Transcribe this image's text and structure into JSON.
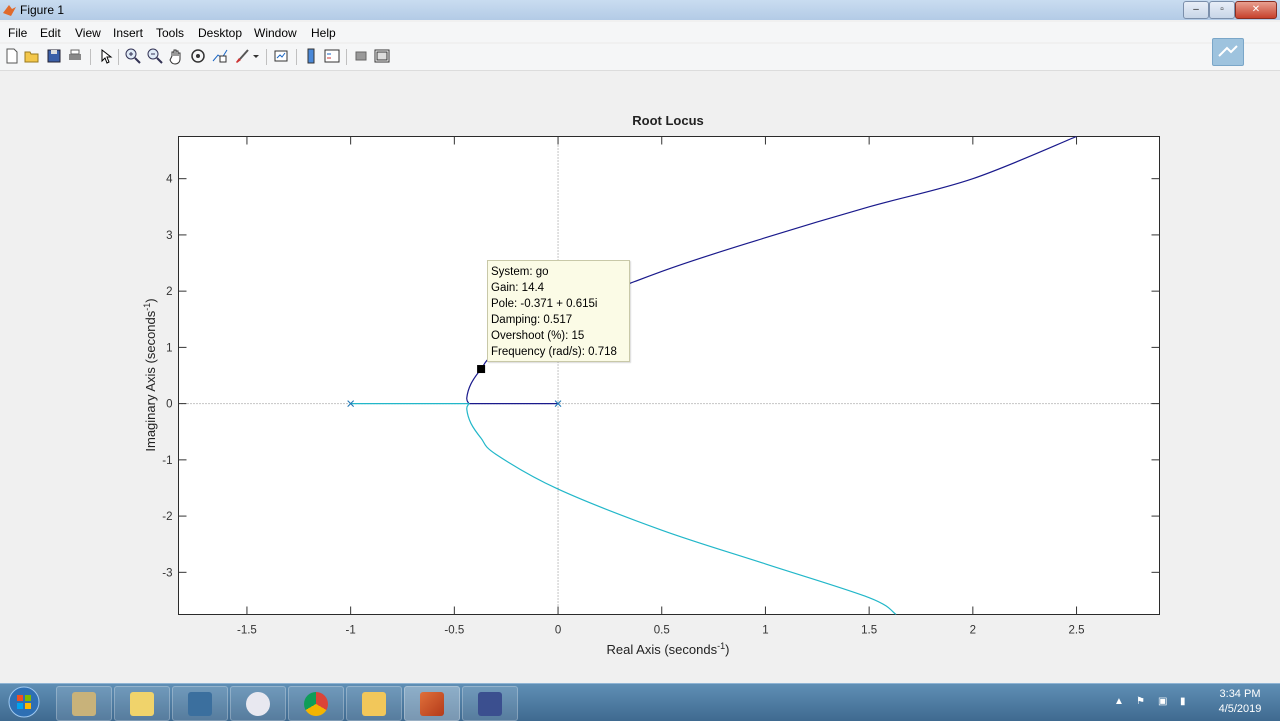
{
  "window": {
    "title": "Figure 1"
  },
  "menu": [
    "File",
    "Edit",
    "View",
    "Insert",
    "Tools",
    "Desktop",
    "Window",
    "Help"
  ],
  "toolbar": {
    "buttons": [
      "new-figure-icon",
      "open-file-icon",
      "save-icon",
      "print-icon",
      "pointer-icon",
      "zoom-in-icon",
      "zoom-out-icon",
      "pan-icon",
      "rotate-icon",
      "data-cursor-icon",
      "brush-icon",
      "link-icon",
      "colorbar-icon",
      "legend-icon",
      "hide-plot-tools-icon",
      "show-plot-tools-icon"
    ]
  },
  "chart_data": {
    "type": "line",
    "title": "Root Locus",
    "xlabel": "Real Axis (seconds",
    "xlabel_sup": "-1",
    "xlabel_end": ")",
    "ylabel": "Imaginary Axis (seconds",
    "ylabel_sup": "-1",
    "ylabel_end": ")",
    "xlim": [
      -1.83,
      2.9
    ],
    "ylim": [
      -3.75,
      4.75
    ],
    "x_ticks": [
      "-1.5",
      "-1",
      "-0.5",
      "0",
      "0.5",
      "1",
      "1.5",
      "2",
      "2.5"
    ],
    "x_tick_values": [
      -1.5,
      -1,
      -0.5,
      0,
      0.5,
      1,
      1.5,
      2,
      2.5
    ],
    "y_ticks": [
      "4",
      "3",
      "2",
      "1",
      "0",
      "-1",
      "-2",
      "-3"
    ],
    "y_tick_values": [
      4,
      3,
      2,
      1,
      0,
      -1,
      -2,
      -3
    ],
    "poles": [
      {
        "x": -1,
        "y": 0
      },
      {
        "x": 0,
        "y": 0
      }
    ],
    "series": [
      {
        "color": "#1a1a8c",
        "points": [
          [
            0,
            0
          ],
          [
            -0.43,
            0
          ],
          [
            -0.44,
            0.1
          ],
          [
            -0.42,
            0.35
          ],
          [
            -0.371,
            0.615
          ],
          [
            -0.3,
            0.9
          ],
          [
            0,
            1.6
          ],
          [
            0.5,
            2.35
          ],
          [
            1,
            2.95
          ],
          [
            1.5,
            3.5
          ],
          [
            2,
            4.0
          ],
          [
            2.5,
            4.75
          ]
        ]
      },
      {
        "color": "#22b7c9",
        "points": [
          [
            -1,
            0
          ],
          [
            -0.43,
            0
          ],
          [
            -0.44,
            -0.1
          ],
          [
            -0.42,
            -0.35
          ],
          [
            -0.371,
            -0.615
          ],
          [
            -0.3,
            -0.9
          ],
          [
            0,
            -1.52
          ],
          [
            0.5,
            -2.25
          ],
          [
            1,
            -2.85
          ],
          [
            1.5,
            -3.45
          ],
          [
            1.63,
            -3.75
          ]
        ]
      }
    ],
    "datatip": {
      "marker": [
        -0.371,
        0.615
      ],
      "lines": [
        "System: go",
        "Gain: 14.4",
        "Pole: -0.371 + 0.615i",
        "Damping: 0.517",
        "Overshoot (%): 15",
        "Frequency (rad/s): 0.718"
      ]
    }
  },
  "taskbar": {
    "apps": [
      "explorer-library-icon",
      "folder-icon",
      "file-manager-icon",
      "itunes-icon",
      "chrome-icon",
      "explorer-icon",
      "matlab-icon",
      "recorder-icon"
    ],
    "clock_time": "3:34 PM",
    "clock_date": "4/5/2019"
  },
  "colors": {
    "locus_upper": "#1a1a8c",
    "locus_lower": "#22b7c9",
    "pole_marker": "#1f77b4"
  }
}
